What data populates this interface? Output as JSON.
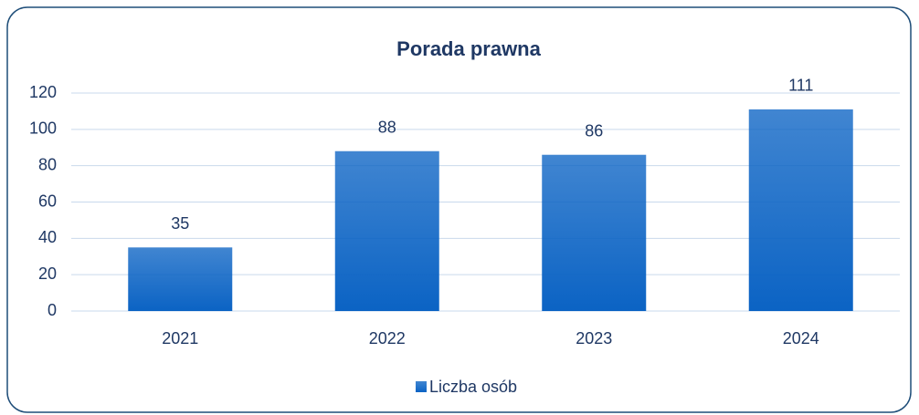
{
  "chart_data": {
    "type": "bar",
    "title": "Porada prawna",
    "categories": [
      "2021",
      "2022",
      "2023",
      "2024"
    ],
    "series": [
      {
        "name": "Liczba osób",
        "color": "#0b63c4",
        "values": [
          35,
          88,
          86,
          111
        ]
      }
    ],
    "ylim": [
      0,
      120
    ],
    "yticks": [
      0,
      20,
      40,
      60,
      80,
      100,
      120
    ],
    "grid": true,
    "legend": "bottom"
  }
}
